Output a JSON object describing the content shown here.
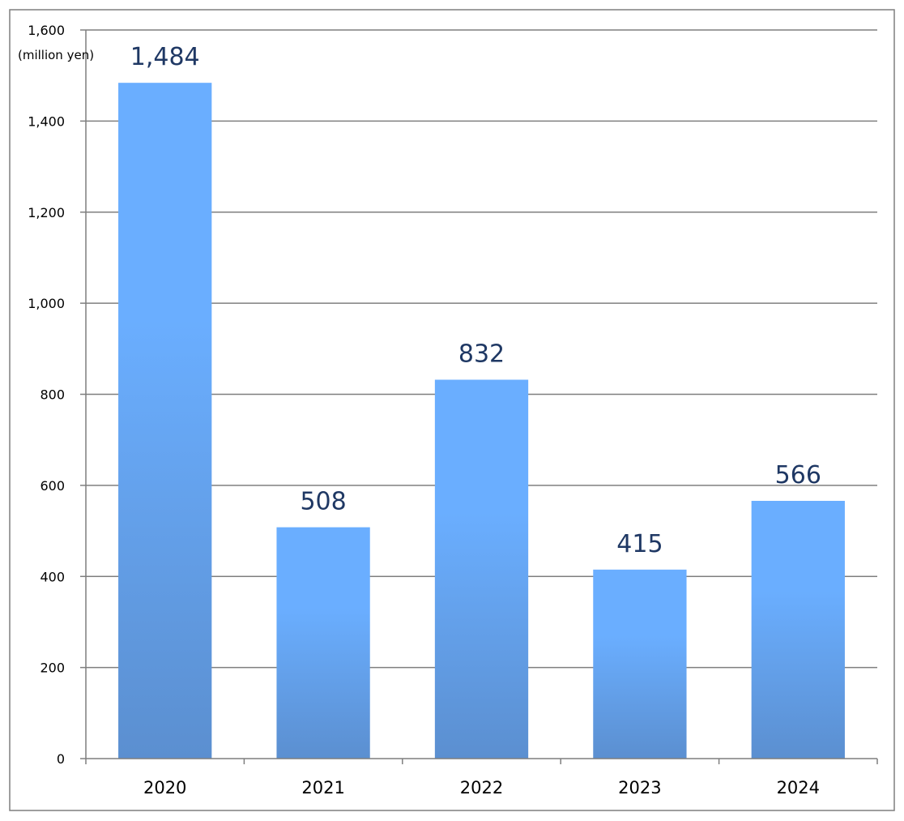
{
  "chart_data": {
    "type": "bar",
    "categories": [
      "2020",
      "2021",
      "2022",
      "2023",
      "2024"
    ],
    "values": [
      1484,
      508,
      832,
      415,
      566
    ],
    "data_labels": [
      "1,484",
      "508",
      "832",
      "415",
      "566"
    ],
    "ylim": [
      0,
      1600
    ],
    "yticks": [
      0,
      200,
      400,
      600,
      800,
      1000,
      1200,
      1400,
      1600
    ],
    "ytick_labels": [
      "0",
      "200",
      "400",
      "600",
      "800",
      "1,000",
      "1,200",
      "1,400",
      "1,600"
    ],
    "unit_label": "(million yen)",
    "grid": true,
    "legend": "none",
    "colors": {
      "bar_top": "#6aaeff",
      "bar_bottom": "#5b8fd0",
      "grid": "#7f7f7f",
      "data_label": "#1f3864",
      "border": "#7f7f7f"
    }
  }
}
